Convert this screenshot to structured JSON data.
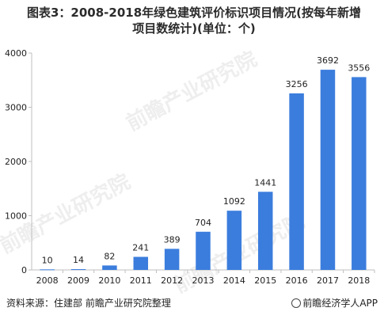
{
  "title_line1": "图表3：2008-2018年绿色建筑评价标识项目情况(按每年新增",
  "title_line2": "项目数统计)(单位：个)",
  "footer": {
    "source": "资料来源：住建部 前瞻产业研究院整理",
    "brand": "前瞻经济学人APP"
  },
  "watermark": {
    "text": "前瞻产业研究院"
  },
  "colors": {
    "bar": "#3b7ddd",
    "axis": "#bfbfbf",
    "text": "#222222"
  },
  "chart_data": {
    "type": "bar",
    "categories": [
      "2008",
      "2009",
      "2010",
      "2011",
      "2012",
      "2013",
      "2014",
      "2015",
      "2016",
      "2017",
      "2018"
    ],
    "values": [
      10,
      14,
      82,
      241,
      389,
      704,
      1092,
      1441,
      3256,
      3692,
      3556
    ],
    "data_labels": [
      "10",
      "14",
      "82",
      "241",
      "389",
      "704",
      "1092",
      "1441",
      "3256",
      "3692",
      "3556"
    ],
    "title": "图表3：2008-2018年绿色建筑评价标识项目情况(按每年新增项目数统计)(单位：个)",
    "xlabel": "",
    "ylabel": "",
    "ylim": [
      0,
      4000
    ],
    "yticks": [
      0,
      1000,
      2000,
      3000,
      4000
    ],
    "ytick_labels": [
      "0",
      "1000",
      "2000",
      "3000",
      "4000"
    ],
    "grid": false,
    "legend": "none"
  }
}
